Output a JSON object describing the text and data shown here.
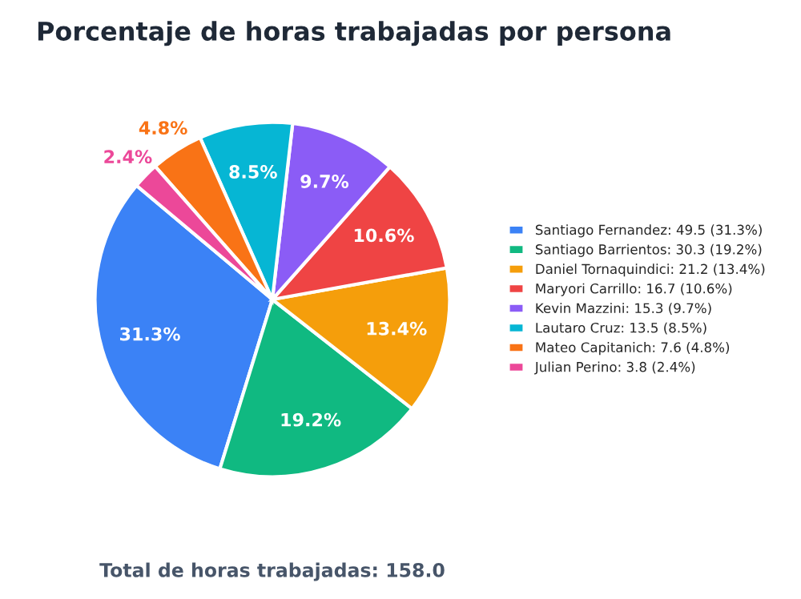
{
  "chart_data": {
    "type": "pie",
    "title": "Porcentaje de horas trabajadas por persona",
    "categories": [
      "Santiago Fernandez: 49.5 (31.3%)",
      "Santiago Barrientos: 30.3 (19.2%)",
      "Daniel Tornaquindici: 21.2 (13.4%)",
      "Maryori Carrillo: 16.7 (10.6%)",
      "Kevin Mazzini: 15.3 (9.7%)",
      "Lautaro Cruz: 13.5 (8.5%)",
      "Mateo Capitanich: 7.6 (4.8%)",
      "Julian Perino: 3.8 (2.4%)"
    ],
    "values": [
      31.3,
      19.2,
      13.4,
      10.6,
      9.7,
      8.5,
      4.8,
      2.4
    ],
    "value_labels": [
      "31.3%",
      "19.2%",
      "13.4%",
      "10.6%",
      "9.7%",
      "8.5%",
      "4.8%",
      "2.4%"
    ],
    "colors": [
      "#3b82f6",
      "#10b981",
      "#f59e0b",
      "#ef4444",
      "#8b5cf6",
      "#06b6d4",
      "#f97316",
      "#ec4899"
    ],
    "legend": "right",
    "annotations": [
      "Total de horas trabajadas: 158.0"
    ]
  }
}
